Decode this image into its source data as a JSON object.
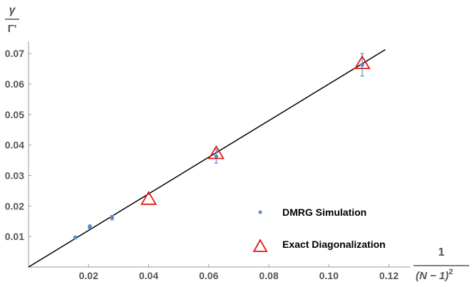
{
  "chart_data": {
    "type": "scatter",
    "xlim": [
      0,
      0.127
    ],
    "ylim": [
      0,
      0.074
    ],
    "x_ticks": [
      "0.02",
      "0.04",
      "0.06",
      "0.08",
      "0.10",
      "0.12"
    ],
    "y_ticks": [
      "0.01",
      "0.02",
      "0.03",
      "0.04",
      "0.05",
      "0.06",
      "0.07"
    ],
    "x_tick_values": [
      0.02,
      0.04,
      0.06,
      0.08,
      0.1,
      0.12
    ],
    "y_tick_values": [
      0.01,
      0.02,
      0.03,
      0.04,
      0.05,
      0.06,
      0.07
    ],
    "ylabel": {
      "numerator": "γ",
      "denominator": "Γ'"
    },
    "xlabel": {
      "numerator": "1",
      "denominator_base": "(N − 1)",
      "exponent": "2"
    },
    "grid": false,
    "fit_line": {
      "slope": 0.6,
      "intercept": 0,
      "color": "#000000"
    },
    "series": [
      {
        "name": "DMRG Simulation",
        "marker": "dot",
        "color": "#5b88c4",
        "points": [
          {
            "x": 0.0156,
            "y": 0.0097,
            "err": 0.0004
          },
          {
            "x": 0.0204,
            "y": 0.0132,
            "err": 0.0006
          },
          {
            "x": 0.0278,
            "y": 0.0162,
            "err": 0.0007
          },
          {
            "x": 0.0625,
            "y": 0.0363,
            "err": 0.0022
          },
          {
            "x": 0.1111,
            "y": 0.0663,
            "err": 0.0037
          }
        ]
      },
      {
        "name": "Exact Diagonalization",
        "marker": "triangle",
        "color": "#e31a1c",
        "points": [
          {
            "x": 0.04,
            "y": 0.0221
          },
          {
            "x": 0.0625,
            "y": 0.0371
          },
          {
            "x": 0.1111,
            "y": 0.0666
          }
        ]
      }
    ],
    "legend": {
      "placement": "bottom-right"
    }
  }
}
